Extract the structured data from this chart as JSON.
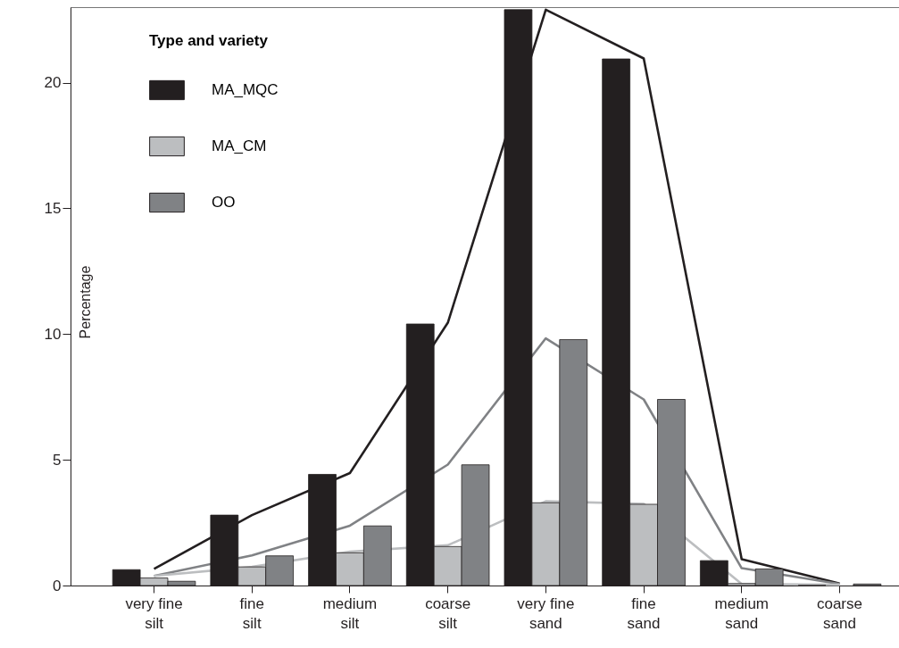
{
  "chart_data": {
    "type": "bar",
    "ylabel": "Percentage",
    "legend_title": "Type and variety",
    "legend": "top left",
    "grid": false,
    "categories": [
      "very fine silt",
      "fine silt",
      "medium silt",
      "coarse silt",
      "very fine sand",
      "fine sand",
      "medium sand",
      "coarse sand"
    ],
    "ylim": [
      0,
      23
    ],
    "yticks": [
      0,
      5,
      10,
      15,
      20
    ],
    "series": [
      {
        "name": "MA_MQC",
        "color": "#231f20",
        "values": [
          0.63,
          2.8,
          4.42,
          10.4,
          22.9,
          20.94,
          0.99,
          0
        ]
      },
      {
        "name": "MA_CM",
        "color": "#bcbec0",
        "values": [
          0.3,
          0.74,
          1.3,
          1.55,
          3.29,
          3.23,
          0.08,
          null
        ]
      },
      {
        "name": "OO",
        "color": "#808285",
        "values": [
          0.17,
          1.18,
          2.37,
          4.8,
          9.78,
          7.4,
          0.66,
          0.06
        ]
      },
      {
        "type": "line",
        "color": "#231f20",
        "values": [
          0.66,
          2.8,
          4.47,
          10.45,
          22.9,
          20.96,
          1.05,
          0.08
        ]
      },
      {
        "type": "line",
        "color": "#808285",
        "values": [
          0.38,
          1.2,
          2.38,
          4.81,
          9.83,
          7.4,
          0.69,
          0.06
        ]
      },
      {
        "type": "line",
        "color": "#bcbec0",
        "values": [
          0.38,
          0.74,
          1.35,
          1.6,
          3.35,
          3.25,
          0.06,
          0.03
        ]
      }
    ]
  }
}
